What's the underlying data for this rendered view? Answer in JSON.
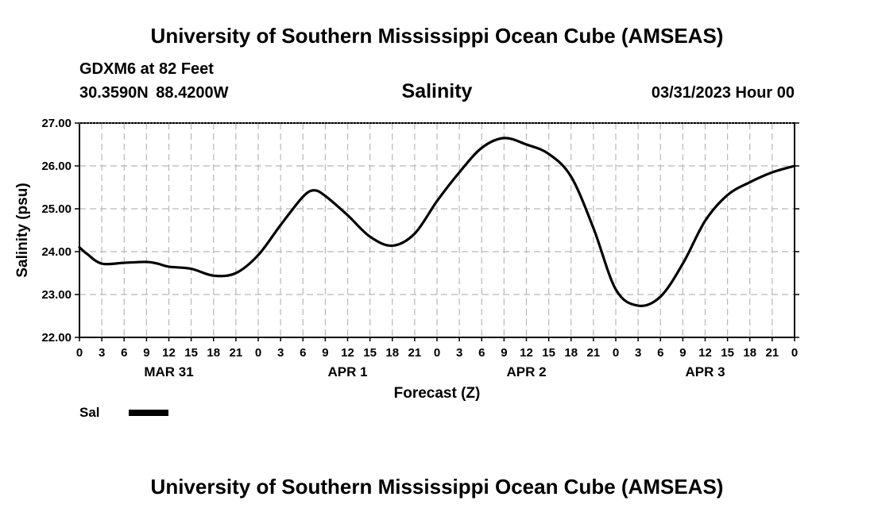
{
  "header": {
    "title": "University of Southern Mississippi Ocean Cube (AMSEAS)",
    "station": "GDXM6 at 82 Feet",
    "coordinates": "30.3590N  88.4200W",
    "run_time": "03/31/2023 Hour 00"
  },
  "footer": {
    "title": "University of Southern Mississippi Ocean Cube (AMSEAS)"
  },
  "chart_data": {
    "type": "line",
    "title": "Salinity",
    "xlabel": "Forecast (Z)",
    "ylabel": "Salinity (psu)",
    "ylim": [
      22.0,
      27.0
    ],
    "yticks": [
      "22.00",
      "23.00",
      "24.00",
      "25.00",
      "26.00",
      "27.00"
    ],
    "xlim": [
      0,
      96
    ],
    "xtick_hours": [
      0,
      3,
      6,
      9,
      12,
      15,
      18,
      21,
      24,
      27,
      30,
      33,
      36,
      39,
      42,
      45,
      48,
      51,
      54,
      57,
      60,
      63,
      66,
      69,
      72,
      75,
      78,
      81,
      84,
      87,
      90,
      93,
      96
    ],
    "xtick_labels": [
      "0",
      "3",
      "6",
      "9",
      "12",
      "15",
      "18",
      "21",
      "0",
      "3",
      "6",
      "9",
      "12",
      "15",
      "18",
      "21",
      "0",
      "3",
      "6",
      "9",
      "12",
      "15",
      "18",
      "21",
      "0",
      "3",
      "6",
      "9",
      "12",
      "15",
      "18",
      "21",
      "0"
    ],
    "day_labels": [
      {
        "label": "MAR 31",
        "hour": 12
      },
      {
        "label": "APR 1",
        "hour": 36
      },
      {
        "label": "APR 2",
        "hour": 60
      },
      {
        "label": "APR 3",
        "hour": 84
      }
    ],
    "grid": true,
    "legend_position": "bottom-left",
    "series": [
      {
        "name": "Sal",
        "color": "#000000",
        "x": [
          0,
          1,
          3,
          6,
          9,
          10.5,
          12,
          15,
          18,
          21,
          24,
          27,
          30,
          31.5,
          33,
          36,
          39,
          42,
          45,
          48,
          51,
          54,
          57,
          60,
          63,
          66,
          69,
          72,
          75,
          78,
          81,
          84,
          87,
          90,
          93,
          96
        ],
        "values": [
          24.1,
          23.95,
          23.72,
          23.74,
          23.76,
          23.72,
          23.65,
          23.6,
          23.44,
          23.5,
          23.92,
          24.62,
          25.28,
          25.43,
          25.3,
          24.85,
          24.35,
          24.14,
          24.42,
          25.18,
          25.85,
          26.42,
          26.65,
          26.5,
          26.28,
          25.75,
          24.55,
          23.12,
          22.74,
          22.95,
          23.72,
          24.72,
          25.32,
          25.62,
          25.85,
          26.0
        ]
      }
    ]
  }
}
